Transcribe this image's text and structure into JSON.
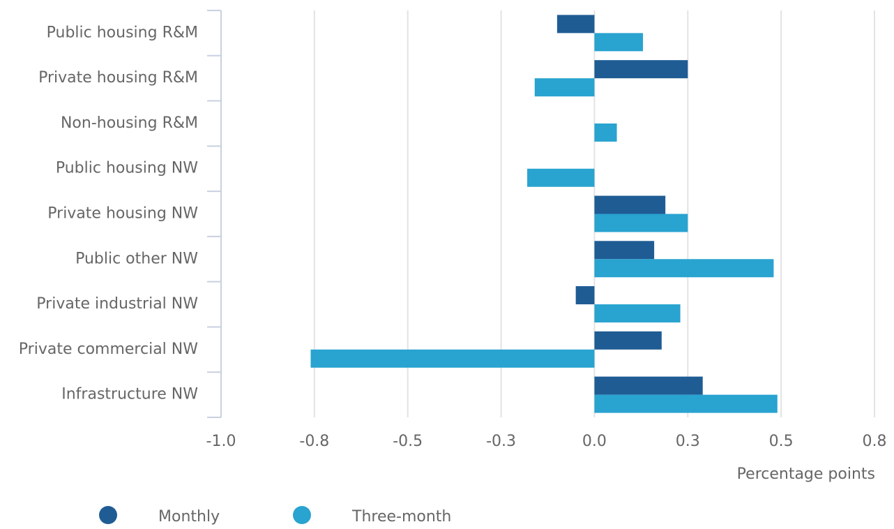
{
  "chart_data": {
    "type": "hbar",
    "categories": [
      "Public housing R&M",
      "Private housing R&M",
      "Non-housing R&M",
      "Public housing NW",
      "Private housing NW",
      "Public other NW",
      "Private industrial NW",
      "Private commercial NW",
      "Infrastructure NW"
    ],
    "series": [
      {
        "name": "Monthly",
        "color": "#1f5c94",
        "values": [
          -0.1,
          0.25,
          0,
          0,
          0.19,
          0.16,
          -0.05,
          0.18,
          0.29
        ]
      },
      {
        "name": "Three-month",
        "color": "#29a3d0",
        "values": [
          0.13,
          -0.16,
          0.06,
          -0.18,
          0.25,
          0.48,
          0.23,
          -0.76,
          0.49
        ]
      }
    ],
    "xlabel": "Percentage points",
    "xlim": [
      -1,
      0.75
    ],
    "xticks": [
      {
        "value": -1,
        "label": "-1.0"
      },
      {
        "value": -0.75,
        "label": "-0.8"
      },
      {
        "value": -0.5,
        "label": "-0.5"
      },
      {
        "value": -0.25,
        "label": "-0.3"
      },
      {
        "value": 0,
        "label": "0.0"
      },
      {
        "value": 0.25,
        "label": "0.3"
      },
      {
        "value": 0.5,
        "label": "0.5"
      },
      {
        "value": 0.75,
        "label": "0.8"
      }
    ],
    "grid": true,
    "legend": "bottom"
  }
}
